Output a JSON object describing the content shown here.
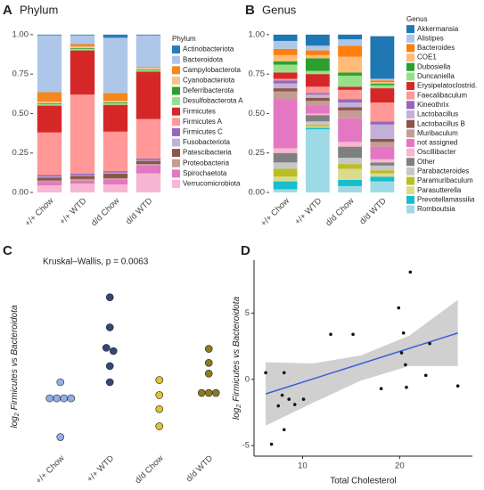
{
  "chart_data": [
    {
      "type": "stacked_bar",
      "panel": "A",
      "title": "Phylum",
      "legend_title": "Phylum",
      "categories": [
        "+/+ Chow",
        "+/+ WTD",
        "d/d Chow",
        "d/d WTD"
      ],
      "ylim": [
        0,
        1.05
      ],
      "yticks": [
        {
          "value": 0,
          "label": "0.00"
        },
        {
          "value": 0.25,
          "label": "0.25"
        },
        {
          "value": 0.5,
          "label": "0.50"
        },
        {
          "value": 0.75,
          "label": "0.75"
        },
        {
          "value": 1,
          "label": "1.00"
        }
      ],
      "series": [
        {
          "name": "Actinobacteriota",
          "color": "#2b7bba",
          "values": [
            0.005,
            0.005,
            0.02,
            0.005
          ]
        },
        {
          "name": "Bacteroidota",
          "color": "#aec7e8",
          "values": [
            0.36,
            0.055,
            0.35,
            0.2
          ]
        },
        {
          "name": "Campylobacterota",
          "color": "#f5871f",
          "values": [
            0.06,
            0.015,
            0.05,
            0.005
          ]
        },
        {
          "name": "Cyanobacteriota",
          "color": "#f8c38a",
          "values": [
            0.01,
            0.01,
            0.01,
            0.01
          ]
        },
        {
          "name": "Deferribacterota",
          "color": "#2ca02c",
          "values": [
            0.005,
            0.005,
            0.005,
            0.005
          ]
        },
        {
          "name": "Desulfobacterota A",
          "color": "#98df8a",
          "values": [
            0.01,
            0.01,
            0.01,
            0.01
          ]
        },
        {
          "name": "Firmicutes",
          "color": "#d62728",
          "values": [
            0.17,
            0.28,
            0.17,
            0.3
          ]
        },
        {
          "name": "Firmicutes A",
          "color": "#ff9896",
          "values": [
            0.27,
            0.5,
            0.25,
            0.25
          ]
        },
        {
          "name": "Firmicutes C",
          "color": "#9467bd",
          "values": [
            0.01,
            0.01,
            0.01,
            0.01
          ]
        },
        {
          "name": "Fusobacteriota",
          "color": "#c5b0d5",
          "values": [
            0.005,
            0.005,
            0.005,
            0.005
          ]
        },
        {
          "name": "Patescibacteria",
          "color": "#8c564b",
          "values": [
            0.02,
            0.02,
            0.03,
            0.02
          ]
        },
        {
          "name": "Proteobacteria",
          "color": "#c49c94",
          "values": [
            0.01,
            0.01,
            0.01,
            0.01
          ]
        },
        {
          "name": "Spirochaetota",
          "color": "#e377c2",
          "values": [
            0.02,
            0.02,
            0.03,
            0.05
          ]
        },
        {
          "name": "Verrucomicrobiota",
          "color": "#f7b6d2",
          "values": [
            0.045,
            0.055,
            0.05,
            0.12
          ]
        }
      ]
    },
    {
      "type": "stacked_bar",
      "panel": "B",
      "title": "Genus",
      "legend_title": "Genus",
      "categories": [
        "+/+ Chow",
        "+/+ WTD",
        "d/d Chow",
        "d/d WTD"
      ],
      "ylim": [
        0,
        1.05
      ],
      "yticks": [
        {
          "value": 0,
          "label": "0.00"
        },
        {
          "value": 0.25,
          "label": "0.25"
        },
        {
          "value": 0.5,
          "label": "0.50"
        },
        {
          "value": 0.75,
          "label": "0.75"
        },
        {
          "value": 1,
          "label": "1.00"
        }
      ],
      "series": [
        {
          "name": "Akkermansia",
          "color": "#1f77b4",
          "values": [
            0.04,
            0.07,
            0.03,
            0.27
          ]
        },
        {
          "name": "Alistipes",
          "color": "#aec7e8",
          "values": [
            0.05,
            0.03,
            0.04,
            0.01
          ]
        },
        {
          "name": "Bacteroides",
          "color": "#ff7f0e",
          "values": [
            0.04,
            0.03,
            0.07,
            0.01
          ]
        },
        {
          "name": "COE1",
          "color": "#ffbb78",
          "values": [
            0.04,
            0.02,
            0.1,
            0.01
          ]
        },
        {
          "name": "Dubosiella",
          "color": "#2ca02c",
          "values": [
            0.02,
            0.08,
            0.02,
            0.01
          ]
        },
        {
          "name": "Duncaniella",
          "color": "#98df8a",
          "values": [
            0.05,
            0.02,
            0.07,
            0.02
          ]
        },
        {
          "name": "Erysipelatoclostrid.",
          "color": "#d62728",
          "values": [
            0.04,
            0.08,
            0.02,
            0.09
          ]
        },
        {
          "name": "Faecalibaculum",
          "color": "#ff9896",
          "values": [
            0.01,
            0.04,
            0.06,
            0.12
          ]
        },
        {
          "name": "Kineothrix",
          "color": "#9467bd",
          "values": [
            0.02,
            0.01,
            0.02,
            0.02
          ]
        },
        {
          "name": "Lactobacillus",
          "color": "#c5b0d5",
          "values": [
            0.03,
            0.02,
            0.03,
            0.09
          ]
        },
        {
          "name": "Lactobacillus B",
          "color": "#8c564b",
          "values": [
            0.02,
            0.02,
            0.02,
            0.02
          ]
        },
        {
          "name": "Muribaculum",
          "color": "#c49c94",
          "values": [
            0.05,
            0.03,
            0.05,
            0.03
          ]
        },
        {
          "name": "not assigned",
          "color": "#e377c2",
          "values": [
            0.31,
            0.05,
            0.15,
            0.08
          ]
        },
        {
          "name": "Oscillibacter",
          "color": "#f7b6d2",
          "values": [
            0.03,
            0.01,
            0.03,
            0.02
          ]
        },
        {
          "name": "Other",
          "color": "#7f7f7f",
          "values": [
            0.06,
            0.04,
            0.07,
            0.02
          ]
        },
        {
          "name": "Parabacteroides",
          "color": "#c7c7c7",
          "values": [
            0.04,
            0.02,
            0.04,
            0.03
          ]
        },
        {
          "name": "Paramuribaculum",
          "color": "#bcbd22",
          "values": [
            0.05,
            0.01,
            0.03,
            0.02
          ]
        },
        {
          "name": "Parasutterella",
          "color": "#dbdb8d",
          "values": [
            0.03,
            0.01,
            0.07,
            0.02
          ]
        },
        {
          "name": "Prevotellamassilia",
          "color": "#17becf",
          "values": [
            0.05,
            0.01,
            0.04,
            0.03
          ]
        },
        {
          "name": "Romboutsia",
          "color": "#9edae5",
          "values": [
            0.02,
            0.4,
            0.04,
            0.07
          ]
        }
      ]
    },
    {
      "type": "strip",
      "panel": "C",
      "annotation": "Kruskal–Wallis, p = 0.0063",
      "ylabel": {
        "base": "log",
        "sub": "2",
        "text": "Firmicutes vs Bacteroidota"
      },
      "categories": [
        "+/+ Chow",
        "+/+ WTD",
        "d/d Chow",
        "d/d WTD"
      ],
      "colors": [
        "#93aee6",
        "#34467a",
        "#dcc52f",
        "#8c7b1f"
      ],
      "ylim": [
        -6,
        9.5
      ],
      "values": [
        [
          0.3,
          -1.2,
          -1.2,
          -1.2,
          -1.2,
          -4.8
        ],
        [
          8.2,
          5.4,
          3.5,
          3.2,
          1.8,
          0.3
        ],
        [
          0.5,
          -0.9,
          -2.2,
          -3.8
        ],
        [
          3.4,
          2.1,
          1.1,
          -0.7,
          -0.7,
          -0.7
        ]
      ]
    },
    {
      "type": "scatter",
      "panel": "D",
      "xlabel": "Total Cholesterol",
      "ylabel": {
        "base": "log",
        "sub": "2",
        "text": "Firmicutes vs Bacteroidota"
      },
      "xlim": [
        5,
        27.5
      ],
      "ylim": [
        -5.8,
        9
      ],
      "xticks": [
        10,
        20
      ],
      "yticks": [
        -5,
        0,
        5
      ],
      "color": "#111111",
      "fit_color": "#3a5fd9",
      "band_color": "#c8c8c8",
      "x": [
        6.2,
        6.8,
        7.5,
        7.9,
        8.1,
        8.1,
        8.6,
        9.2,
        10.1,
        12.9,
        15.2,
        18.1,
        19.9,
        20.2,
        20.4,
        20.6,
        21.1,
        20.7,
        22.7,
        23.1,
        26.0
      ],
      "y": [
        0.5,
        -4.9,
        -2.0,
        -1.2,
        0.5,
        -3.8,
        -1.5,
        -1.9,
        -1.5,
        3.4,
        3.4,
        -0.7,
        5.4,
        2.0,
        3.5,
        1.1,
        8.1,
        -0.6,
        0.3,
        2.7,
        -0.5
      ],
      "fit": {
        "x": [
          6.2,
          26.0
        ],
        "y": [
          -1.1,
          3.5
        ]
      },
      "ci": {
        "x": [
          6.2,
          11,
          16,
          21,
          26
        ],
        "lower": [
          -3.5,
          -1.8,
          -0.1,
          1.0,
          1.0
        ],
        "upper": [
          1.3,
          1.2,
          1.8,
          3.3,
          6.0
        ]
      }
    }
  ]
}
